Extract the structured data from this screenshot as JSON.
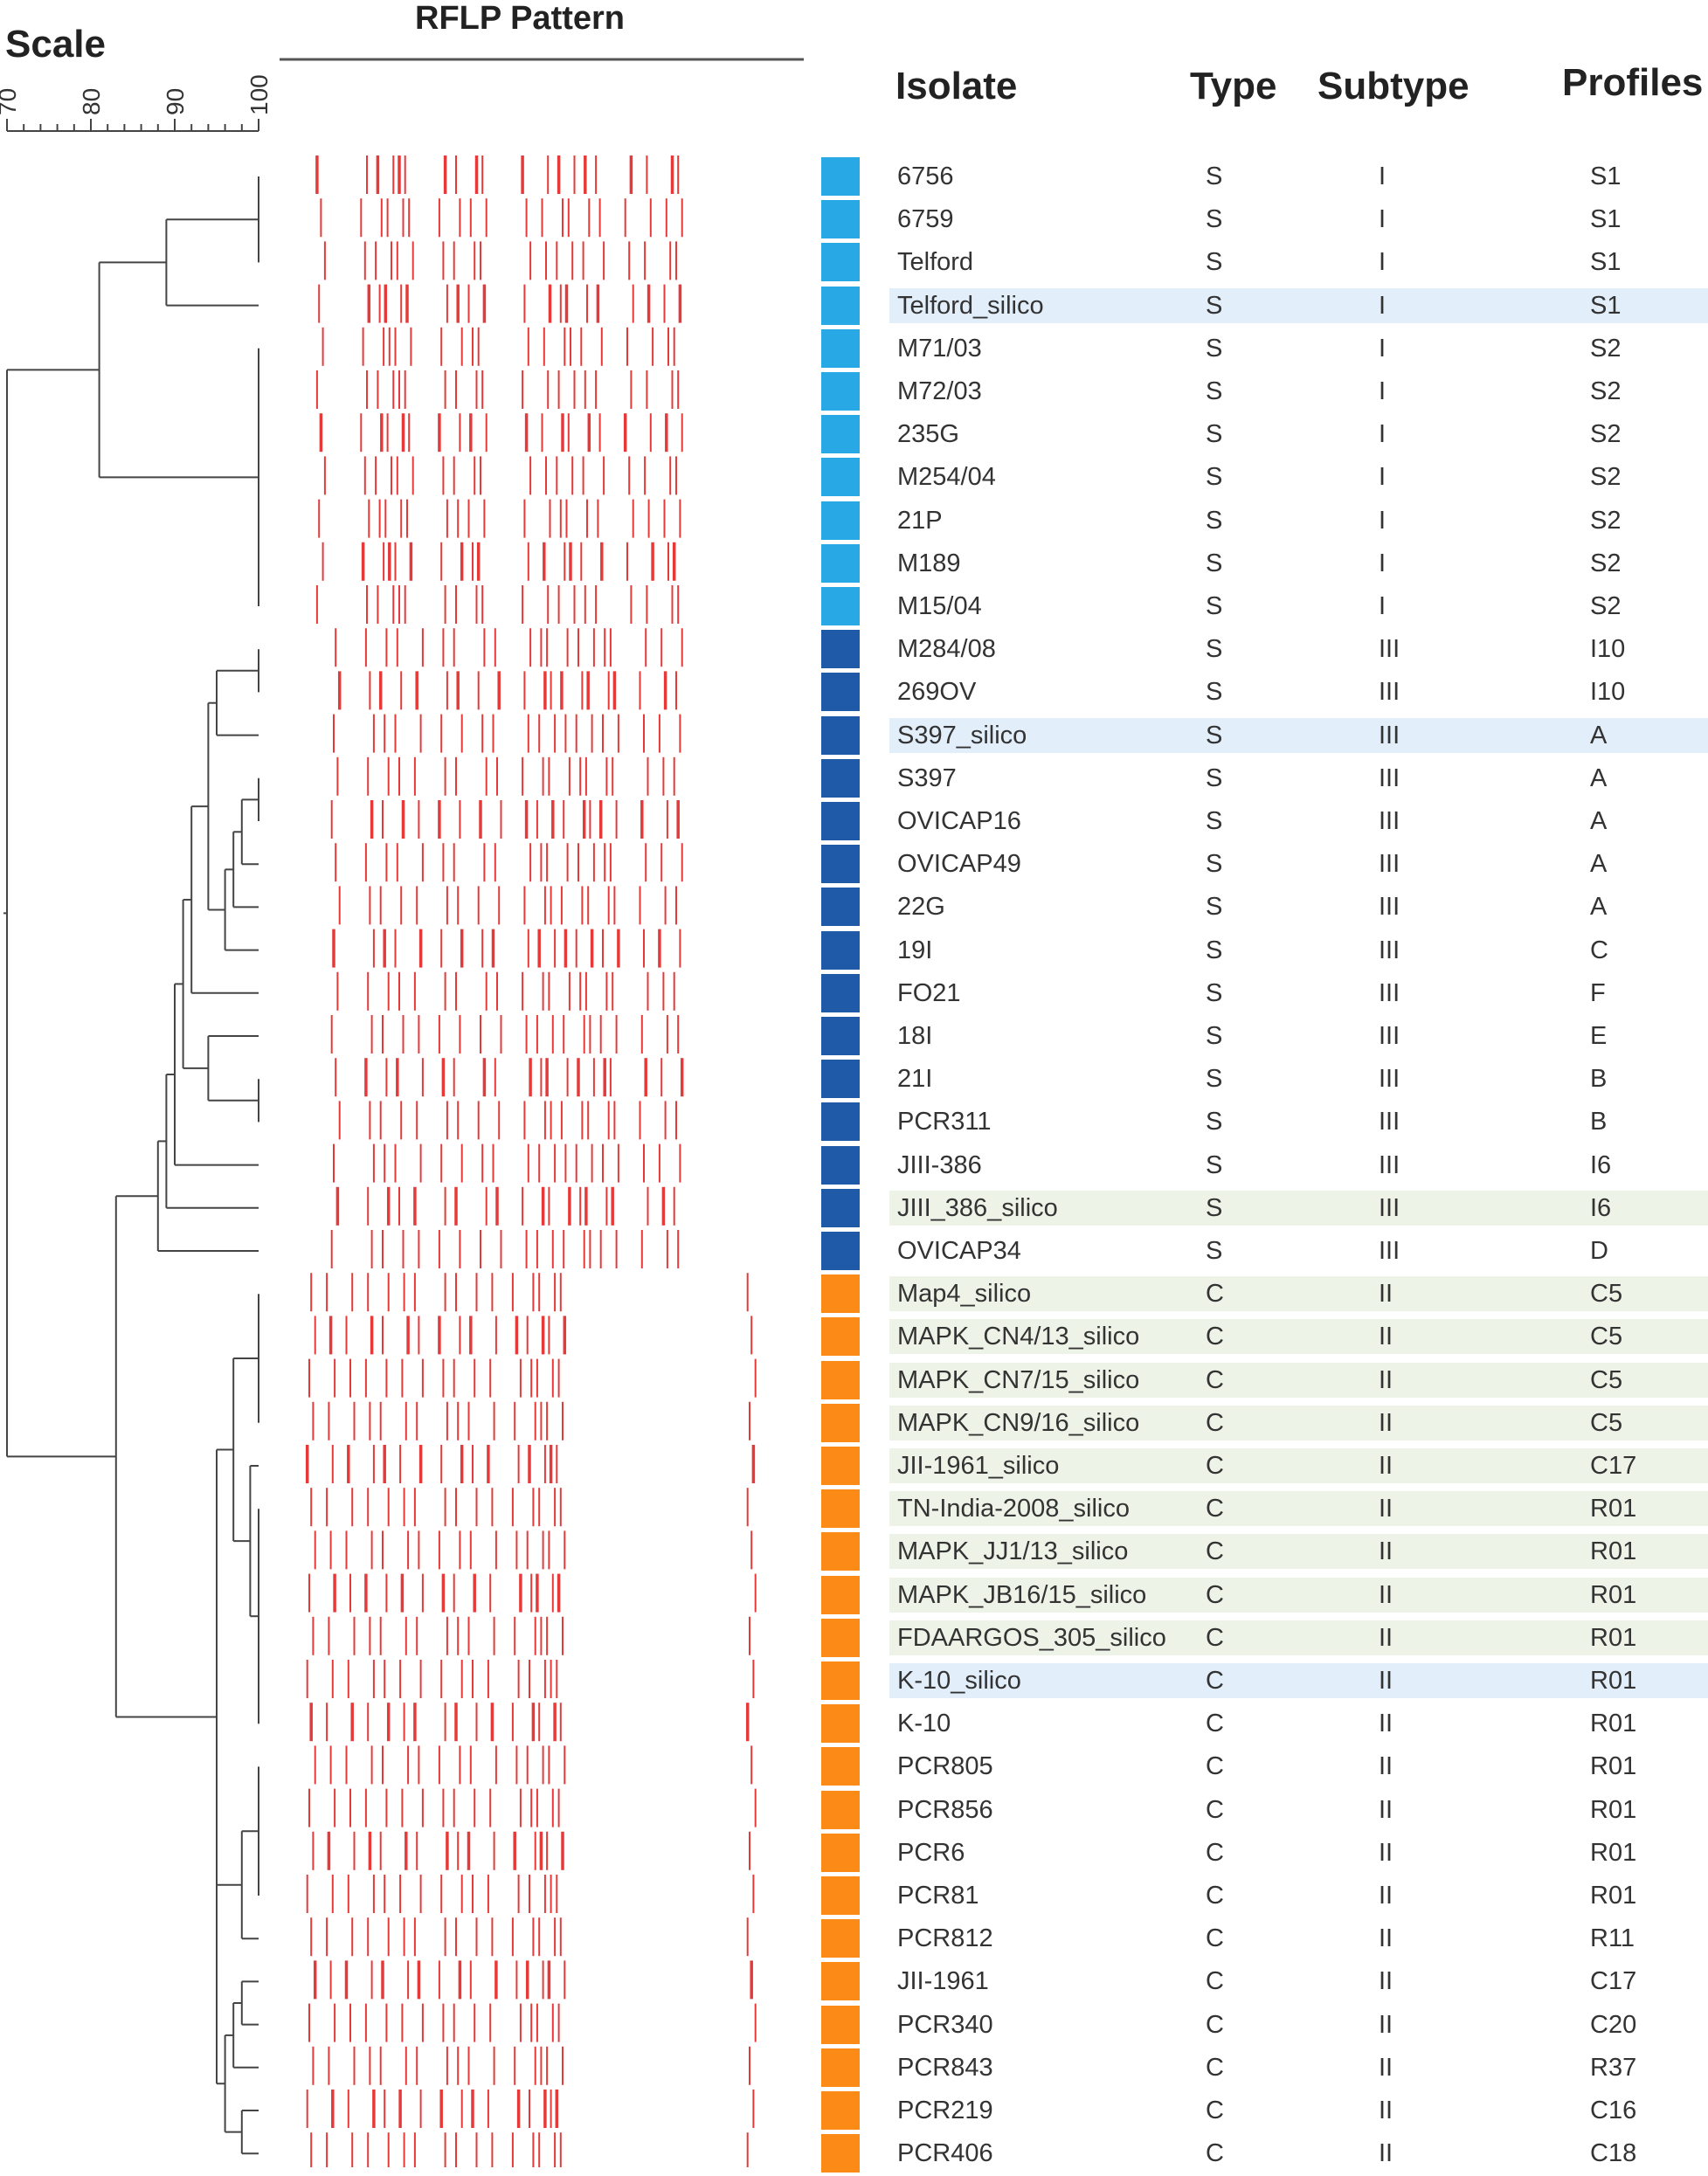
{
  "headers": {
    "scale": "Scale",
    "rflp": "RFLP Pattern",
    "isolate": "Isolate",
    "type": "Type",
    "subtype": "Subtype",
    "profiles": "Profiles"
  },
  "scale_axis": {
    "min": 70,
    "max": 100,
    "ticks": [
      "70",
      "80",
      "90",
      "100"
    ]
  },
  "colors": {
    "band": "#e63a3a",
    "tree": "#444444",
    "type_S_subtype_I": "#29a8e6",
    "type_S_subtype_III": "#1f5aa8",
    "type_C_subtype_II": "#fb8a17",
    "highlight_blue": "#e2eefa",
    "highlight_green": "#eef3e8"
  },
  "rows": [
    {
      "isolate": "6756",
      "type": "S",
      "subtype": "I",
      "profile": "S1",
      "group": "SI",
      "highlight": ""
    },
    {
      "isolate": "6759",
      "type": "S",
      "subtype": "I",
      "profile": "S1",
      "group": "SI",
      "highlight": ""
    },
    {
      "isolate": "Telford",
      "type": "S",
      "subtype": "I",
      "profile": "S1",
      "group": "SI",
      "highlight": ""
    },
    {
      "isolate": "Telford_silico",
      "type": "S",
      "subtype": "I",
      "profile": "S1",
      "group": "SI",
      "highlight": "blue"
    },
    {
      "isolate": "M71/03",
      "type": "S",
      "subtype": "I",
      "profile": "S2",
      "group": "SI",
      "highlight": ""
    },
    {
      "isolate": "M72/03",
      "type": "S",
      "subtype": "I",
      "profile": "S2",
      "group": "SI",
      "highlight": ""
    },
    {
      "isolate": "235G",
      "type": "S",
      "subtype": "I",
      "profile": "S2",
      "group": "SI",
      "highlight": ""
    },
    {
      "isolate": "M254/04",
      "type": "S",
      "subtype": "I",
      "profile": "S2",
      "group": "SI",
      "highlight": ""
    },
    {
      "isolate": "21P",
      "type": "S",
      "subtype": "I",
      "profile": "S2",
      "group": "SI",
      "highlight": ""
    },
    {
      "isolate": "M189",
      "type": "S",
      "subtype": "I",
      "profile": "S2",
      "group": "SI",
      "highlight": ""
    },
    {
      "isolate": "M15/04",
      "type": "S",
      "subtype": "I",
      "profile": "S2",
      "group": "SI",
      "highlight": ""
    },
    {
      "isolate": "M284/08",
      "type": "S",
      "subtype": "III",
      "profile": "I10",
      "group": "SIII",
      "highlight": ""
    },
    {
      "isolate": "269OV",
      "type": "S",
      "subtype": "III",
      "profile": "I10",
      "group": "SIII",
      "highlight": ""
    },
    {
      "isolate": "S397_silico",
      "type": "S",
      "subtype": "III",
      "profile": "A",
      "group": "SIII",
      "highlight": "blue"
    },
    {
      "isolate": "S397",
      "type": "S",
      "subtype": "III",
      "profile": "A",
      "group": "SIII",
      "highlight": ""
    },
    {
      "isolate": "OVICAP16",
      "type": "S",
      "subtype": "III",
      "profile": "A",
      "group": "SIII",
      "highlight": ""
    },
    {
      "isolate": "OVICAP49",
      "type": "S",
      "subtype": "III",
      "profile": "A",
      "group": "SIII",
      "highlight": ""
    },
    {
      "isolate": "22G",
      "type": "S",
      "subtype": "III",
      "profile": "A",
      "group": "SIII",
      "highlight": ""
    },
    {
      "isolate": "19I",
      "type": "S",
      "subtype": "III",
      "profile": "C",
      "group": "SIII",
      "highlight": ""
    },
    {
      "isolate": "FO21",
      "type": "S",
      "subtype": "III",
      "profile": "F",
      "group": "SIII",
      "highlight": ""
    },
    {
      "isolate": "18I",
      "type": "S",
      "subtype": "III",
      "profile": "E",
      "group": "SIII",
      "highlight": ""
    },
    {
      "isolate": "21I",
      "type": "S",
      "subtype": "III",
      "profile": "B",
      "group": "SIII",
      "highlight": ""
    },
    {
      "isolate": "PCR311",
      "type": "S",
      "subtype": "III",
      "profile": "B",
      "group": "SIII",
      "highlight": ""
    },
    {
      "isolate": "JIII-386",
      "type": "S",
      "subtype": "III",
      "profile": "I6",
      "group": "SIII",
      "highlight": ""
    },
    {
      "isolate": "JIII_386_silico",
      "type": "S",
      "subtype": "III",
      "profile": "I6",
      "group": "SIII",
      "highlight": "green"
    },
    {
      "isolate": "OVICAP34",
      "type": "S",
      "subtype": "III",
      "profile": "D",
      "group": "SIII",
      "highlight": ""
    },
    {
      "isolate": "Map4_silico",
      "type": "C",
      "subtype": "II",
      "profile": "C5",
      "group": "CII",
      "highlight": "green"
    },
    {
      "isolate": "MAPK_CN4/13_silico",
      "type": "C",
      "subtype": "II",
      "profile": "C5",
      "group": "CII",
      "highlight": "green"
    },
    {
      "isolate": "MAPK_CN7/15_silico",
      "type": "C",
      "subtype": "II",
      "profile": "C5",
      "group": "CII",
      "highlight": "green"
    },
    {
      "isolate": "MAPK_CN9/16_silico",
      "type": "C",
      "subtype": "II",
      "profile": "C5",
      "group": "CII",
      "highlight": "green"
    },
    {
      "isolate": "JII-1961_silico",
      "type": "C",
      "subtype": "II",
      "profile": "C17",
      "group": "CII",
      "highlight": "green"
    },
    {
      "isolate": "TN-India-2008_silico",
      "type": "C",
      "subtype": "II",
      "profile": "R01",
      "group": "CII",
      "highlight": "green"
    },
    {
      "isolate": "MAPK_JJ1/13_silico",
      "type": "C",
      "subtype": "II",
      "profile": "R01",
      "group": "CII",
      "highlight": "green"
    },
    {
      "isolate": "MAPK_JB16/15_silico",
      "type": "C",
      "subtype": "II",
      "profile": "R01",
      "group": "CII",
      "highlight": "green"
    },
    {
      "isolate": "FDAARGOS_305_silico",
      "type": "C",
      "subtype": "II",
      "profile": "R01",
      "group": "CII",
      "highlight": "green"
    },
    {
      "isolate": "K-10_silico",
      "type": "C",
      "subtype": "II",
      "profile": "R01",
      "group": "CII",
      "highlight": "blue"
    },
    {
      "isolate": "K-10",
      "type": "C",
      "subtype": "II",
      "profile": "R01",
      "group": "CII",
      "highlight": ""
    },
    {
      "isolate": "PCR805",
      "type": "C",
      "subtype": "II",
      "profile": "R01",
      "group": "CII",
      "highlight": ""
    },
    {
      "isolate": "PCR856",
      "type": "C",
      "subtype": "II",
      "profile": "R01",
      "group": "CII",
      "highlight": ""
    },
    {
      "isolate": "PCR6",
      "type": "C",
      "subtype": "II",
      "profile": "R01",
      "group": "CII",
      "highlight": ""
    },
    {
      "isolate": "PCR81",
      "type": "C",
      "subtype": "II",
      "profile": "R01",
      "group": "CII",
      "highlight": ""
    },
    {
      "isolate": "PCR812",
      "type": "C",
      "subtype": "II",
      "profile": "R11",
      "group": "CII",
      "highlight": ""
    },
    {
      "isolate": "JII-1961",
      "type": "C",
      "subtype": "II",
      "profile": "C17",
      "group": "CII",
      "highlight": ""
    },
    {
      "isolate": "PCR340",
      "type": "C",
      "subtype": "II",
      "profile": "C20",
      "group": "CII",
      "highlight": ""
    },
    {
      "isolate": "PCR843",
      "type": "C",
      "subtype": "II",
      "profile": "R37",
      "group": "CII",
      "highlight": ""
    },
    {
      "isolate": "PCR219",
      "type": "C",
      "subtype": "II",
      "profile": "C16",
      "group": "CII",
      "highlight": ""
    },
    {
      "isolate": "PCR406",
      "type": "C",
      "subtype": "II",
      "profile": "C18",
      "group": "CII",
      "highlight": ""
    }
  ],
  "dendrogram": {
    "nodes": [
      {
        "id": "a",
        "sim": 100,
        "children": [
          "L1",
          "L2",
          "L3"
        ]
      },
      {
        "id": "b",
        "sim": 89,
        "children": [
          "a",
          "L4"
        ]
      },
      {
        "id": "c",
        "sim": 100,
        "children": [
          "L5",
          "L6",
          "L7",
          "L8",
          "L9",
          "L10",
          "L11"
        ]
      },
      {
        "id": "d",
        "sim": 81,
        "children": [
          "b",
          "c"
        ]
      },
      {
        "id": "e",
        "sim": 100,
        "children": [
          "L12",
          "L13"
        ]
      },
      {
        "id": "f",
        "sim": 95,
        "children": [
          "e",
          "L14"
        ]
      },
      {
        "id": "g",
        "sim": 100,
        "children": [
          "L15",
          "L16"
        ]
      },
      {
        "id": "h",
        "sim": 98,
        "children": [
          "g",
          "L17"
        ]
      },
      {
        "id": "i",
        "sim": 97,
        "children": [
          "h",
          "L18"
        ]
      },
      {
        "id": "j",
        "sim": 96,
        "children": [
          "i",
          "L19"
        ]
      },
      {
        "id": "k",
        "sim": 94,
        "children": [
          "f",
          "j"
        ]
      },
      {
        "id": "l",
        "sim": 92,
        "children": [
          "k",
          "L20"
        ]
      },
      {
        "id": "m",
        "sim": 100,
        "children": [
          "L22",
          "L23"
        ]
      },
      {
        "id": "n",
        "sim": 94,
        "children": [
          "L21",
          "m"
        ]
      },
      {
        "id": "o",
        "sim": 91,
        "children": [
          "l",
          "n"
        ]
      },
      {
        "id": "p",
        "sim": 90,
        "children": [
          "o",
          "L24"
        ]
      },
      {
        "id": "q",
        "sim": 89,
        "children": [
          "p",
          "L25"
        ]
      },
      {
        "id": "r",
        "sim": 88,
        "children": [
          "q",
          "L26"
        ]
      },
      {
        "id": "s",
        "sim": 100,
        "children": [
          "L27",
          "L28",
          "L29",
          "L30"
        ]
      },
      {
        "id": "t",
        "sim": 100,
        "children": [
          "L32",
          "L33",
          "L34",
          "L35",
          "L36",
          "L37"
        ]
      },
      {
        "id": "u",
        "sim": 99,
        "children": [
          "L31",
          "t"
        ]
      },
      {
        "id": "v",
        "sim": 97,
        "children": [
          "s",
          "u"
        ]
      },
      {
        "id": "w",
        "sim": 100,
        "children": [
          "L38",
          "L39",
          "L40",
          "L41"
        ]
      },
      {
        "id": "x",
        "sim": 98,
        "children": [
          "w",
          "L42"
        ]
      },
      {
        "id": "y",
        "sim": 98,
        "children": [
          "L43",
          "L44"
        ]
      },
      {
        "id": "z",
        "sim": 97,
        "children": [
          "y",
          "L45"
        ]
      },
      {
        "id": "z2",
        "sim": 98,
        "children": [
          "L46",
          "L47"
        ]
      },
      {
        "id": "z3",
        "sim": 96,
        "children": [
          "z",
          "z2"
        ]
      },
      {
        "id": "z4",
        "sim": 95,
        "children": [
          "x",
          "z3"
        ]
      },
      {
        "id": "z5",
        "sim": 95,
        "children": [
          "v",
          "z4"
        ]
      },
      {
        "id": "z6",
        "sim": 83,
        "children": [
          "r",
          "z5"
        ]
      },
      {
        "id": "root",
        "sim": 70,
        "children": [
          "d",
          "z6"
        ]
      }
    ]
  },
  "band_patterns": {
    "SI": [
      0.04,
      0.13,
      0.16,
      0.18,
      0.2,
      0.22,
      0.29,
      0.32,
      0.35,
      0.37,
      0.46,
      0.5,
      0.53,
      0.55,
      0.58,
      0.61,
      0.67,
      0.71,
      0.75,
      0.77
    ],
    "SIII": [
      0.07,
      0.14,
      0.17,
      0.2,
      0.24,
      0.29,
      0.32,
      0.37,
      0.4,
      0.46,
      0.49,
      0.51,
      0.54,
      0.57,
      0.59,
      0.62,
      0.64,
      0.7,
      0.74,
      0.77
    ],
    "CII": [
      0.02,
      0.06,
      0.1,
      0.14,
      0.17,
      0.21,
      0.24,
      0.29,
      0.32,
      0.35,
      0.39,
      0.44,
      0.47,
      0.49,
      0.51,
      0.53,
      0.92
    ]
  }
}
